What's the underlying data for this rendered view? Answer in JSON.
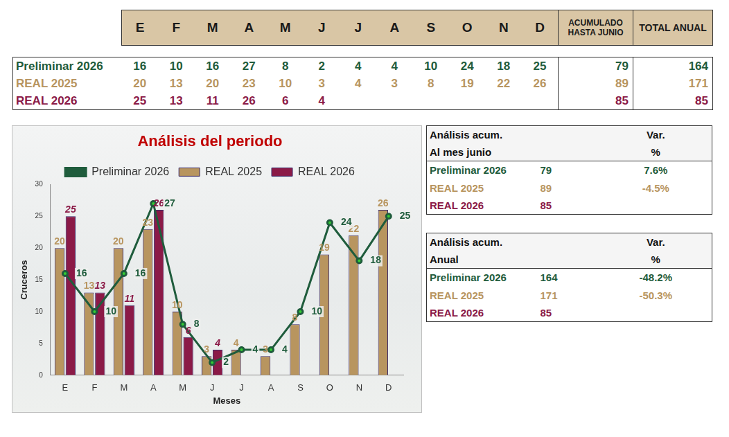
{
  "header_table": {
    "columns": [
      "E",
      "F",
      "M",
      "A",
      "M",
      "J",
      "J",
      "A",
      "S",
      "O",
      "N",
      "D",
      "ACUMULADO HASTA JUNIO",
      "TOTAL ANUAL"
    ],
    "rows": [
      {
        "name": "Preliminar 2026",
        "color": "#1f5c3c",
        "cells": [
          16,
          10,
          16,
          27,
          8,
          2,
          4,
          4,
          10,
          24,
          18,
          25,
          79,
          164
        ]
      },
      {
        "name": "REAL 2025",
        "color": "#b8955f",
        "cells": [
          20,
          13,
          20,
          23,
          10,
          3,
          4,
          3,
          8,
          19,
          22,
          26,
          89,
          171
        ]
      },
      {
        "name": "REAL 2026",
        "color": "#8b1a47",
        "cells": [
          25,
          13,
          11,
          26,
          6,
          4,
          null,
          null,
          null,
          null,
          null,
          null,
          85,
          85
        ]
      }
    ]
  },
  "chart_data": {
    "type": "bar",
    "title": "Análisis del periodo",
    "x_label": "Meses",
    "y_label": "Cruceros",
    "categories": [
      "E",
      "F",
      "M",
      "A",
      "M",
      "J",
      "J",
      "A",
      "S",
      "O",
      "N",
      "D"
    ],
    "series": [
      {
        "name": "REAL 2025",
        "type": "bar",
        "color": "#b8955f",
        "values": [
          20,
          13,
          20,
          23,
          10,
          3,
          4,
          3,
          8,
          19,
          22,
          26
        ]
      },
      {
        "name": "REAL 2026",
        "type": "bar",
        "color": "#8b1a47",
        "values": [
          25,
          13,
          11,
          26,
          6,
          4,
          null,
          null,
          null,
          null,
          null,
          null
        ]
      },
      {
        "name": "Preliminar 2026",
        "type": "line",
        "color": "#1f5c3c",
        "marker": "circle",
        "line_style": "solid",
        "values": [
          16,
          10,
          16,
          27,
          8,
          2,
          4,
          4,
          10,
          24,
          18,
          25
        ]
      }
    ],
    "ylim": [
      0,
      30
    ],
    "yticks": [
      0,
      5,
      10,
      15,
      20,
      25,
      30
    ],
    "grid": false,
    "legend": "top",
    "data_labels": true
  },
  "side_tables": [
    {
      "title": [
        "Análisis acum.",
        "Al mes junio"
      ],
      "value_header": [
        "Var.",
        "%"
      ],
      "rows": [
        {
          "name": "Preliminar 2026",
          "color": "#1f5c3c",
          "value": 79,
          "var": "7.6%"
        },
        {
          "name": "REAL 2025",
          "color": "#b8955f",
          "value": 89,
          "var": "-4.5%"
        },
        {
          "name": "REAL 2026",
          "color": "#8b1a47",
          "value": 85,
          "var": null
        }
      ]
    },
    {
      "title": [
        "Análisis acum.",
        "Anual"
      ],
      "value_header": [
        "Var.",
        "%"
      ],
      "rows": [
        {
          "name": "Preliminar 2026",
          "color": "#1f5c3c",
          "value": 164,
          "var": "-48.2%"
        },
        {
          "name": "REAL 2025",
          "color": "#b8955f",
          "value": 171,
          "var": "-50.3%"
        },
        {
          "name": "REAL 2026",
          "color": "#8b1a47",
          "value": 85,
          "var": null
        }
      ]
    }
  ]
}
